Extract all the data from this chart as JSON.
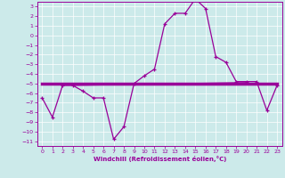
{
  "xlabel": "Windchill (Refroidissement éolien,°C)",
  "xlim": [
    -0.5,
    23.5
  ],
  "ylim": [
    -11.5,
    3.5
  ],
  "yticks": [
    3,
    2,
    1,
    0,
    -1,
    -2,
    -3,
    -4,
    -5,
    -6,
    -7,
    -8,
    -9,
    -10,
    -11
  ],
  "xticks": [
    0,
    1,
    2,
    3,
    4,
    5,
    6,
    7,
    8,
    9,
    10,
    11,
    12,
    13,
    14,
    15,
    16,
    17,
    18,
    19,
    20,
    21,
    22,
    23
  ],
  "bg_color": "#cceaea",
  "line_color": "#990099",
  "grid_color": "#ffffff",
  "main_line_x": [
    0,
    1,
    2,
    3,
    4,
    5,
    6,
    7,
    8,
    9,
    10,
    11,
    12,
    13,
    14,
    15,
    16,
    17,
    18,
    19,
    20,
    21,
    22,
    23
  ],
  "main_line_y": [
    -6.5,
    -8.5,
    -5.2,
    -5.2,
    -5.8,
    -6.5,
    -6.5,
    -10.8,
    -9.5,
    -5.0,
    -4.2,
    -3.5,
    1.2,
    2.3,
    2.3,
    3.8,
    2.8,
    -2.2,
    -2.8,
    -4.8,
    -4.8,
    -4.8,
    -7.8,
    -5.2
  ],
  "flat_lines": [
    {
      "x": [
        0,
        23
      ],
      "y": [
        -5.0,
        -5.0
      ],
      "lw": 2.5
    },
    {
      "x": [
        3,
        22
      ],
      "y": [
        -5.0,
        -5.0
      ],
      "lw": 1.2
    },
    {
      "x": [
        4,
        21
      ],
      "y": [
        -5.1,
        -5.1
      ],
      "lw": 0.8
    },
    {
      "x": [
        3,
        20
      ],
      "y": [
        -5.2,
        -4.9
      ],
      "lw": 0.8
    }
  ]
}
